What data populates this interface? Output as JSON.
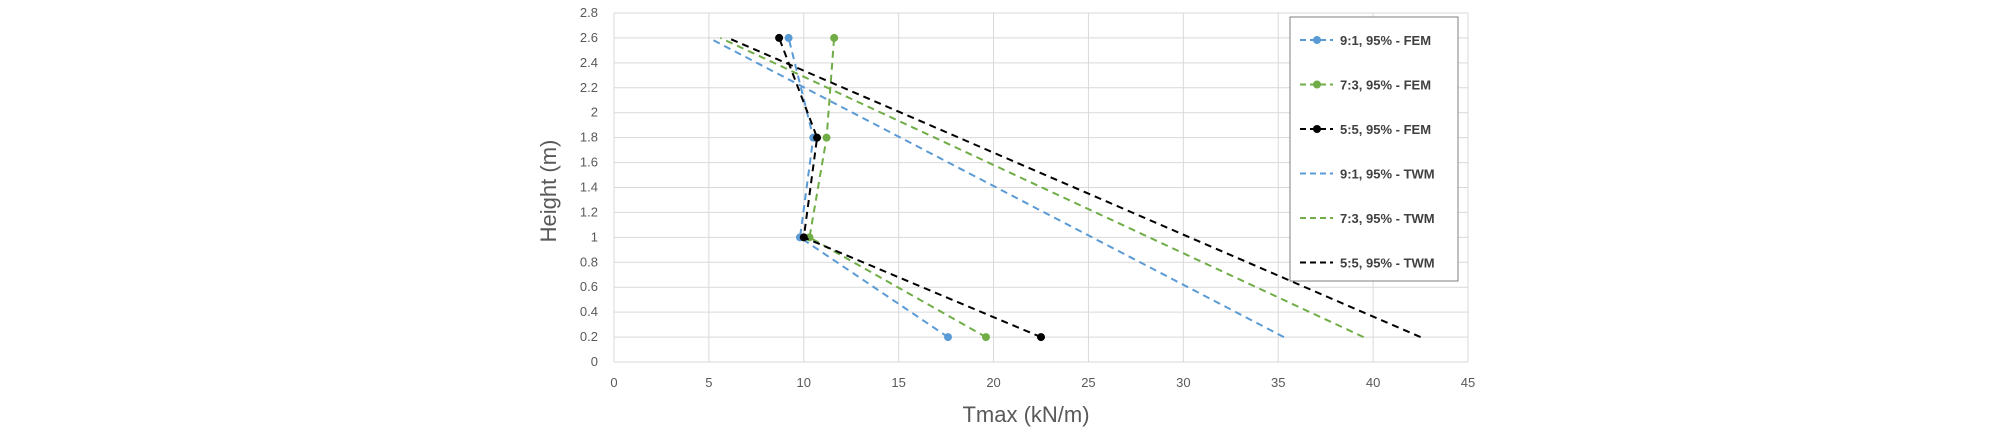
{
  "chart_data": {
    "type": "line",
    "title": "",
    "xlabel": "Tmax (kN/m)",
    "ylabel": "Height (m)",
    "xlim": [
      0,
      45
    ],
    "ylim": [
      0,
      2.8
    ],
    "x_ticks": [
      "0",
      "5",
      "10",
      "15",
      "20",
      "25",
      "30",
      "35",
      "40",
      "45"
    ],
    "y_ticks": [
      "0",
      "0.2",
      "0.4",
      "0.6",
      "0.8",
      "1",
      "1.2",
      "1.4",
      "1.6",
      "1.8",
      "2",
      "2.2",
      "2.4",
      "2.6",
      "2.8"
    ],
    "grid": true,
    "legend_position": "right",
    "series": [
      {
        "name": "9:1, 95% - FEM",
        "color": "#5b9bd5",
        "style": "dashed",
        "markers": true,
        "points": [
          [
            17.6,
            0.2
          ],
          [
            9.8,
            1.0
          ],
          [
            10.5,
            1.8
          ],
          [
            9.2,
            2.6
          ]
        ]
      },
      {
        "name": "7:3, 95% - FEM",
        "color": "#70ad47",
        "style": "dashed",
        "markers": true,
        "points": [
          [
            19.6,
            0.2
          ],
          [
            10.3,
            1.0
          ],
          [
            11.2,
            1.8
          ],
          [
            11.6,
            2.6
          ]
        ]
      },
      {
        "name": "5:5, 95% - FEM",
        "color": "#000000",
        "style": "dashed",
        "markers": true,
        "points": [
          [
            22.5,
            0.2
          ],
          [
            10.0,
            1.0
          ],
          [
            10.7,
            1.8
          ],
          [
            8.7,
            2.6
          ]
        ]
      },
      {
        "name": "9:1, 95% - TWM",
        "color": "#5b9bd5",
        "style": "dashed",
        "markers": false,
        "points": [
          [
            35.3,
            0.2
          ],
          [
            5.0,
            2.6
          ]
        ]
      },
      {
        "name": "7:3, 95% - TWM",
        "color": "#70ad47",
        "style": "dashed",
        "markers": false,
        "points": [
          [
            39.5,
            0.2
          ],
          [
            5.6,
            2.6
          ]
        ]
      },
      {
        "name": "5:5, 95% - TWM",
        "color": "#000000",
        "style": "dashed",
        "markers": false,
        "points": [
          [
            42.5,
            0.2
          ],
          [
            6.0,
            2.6
          ]
        ]
      }
    ]
  }
}
